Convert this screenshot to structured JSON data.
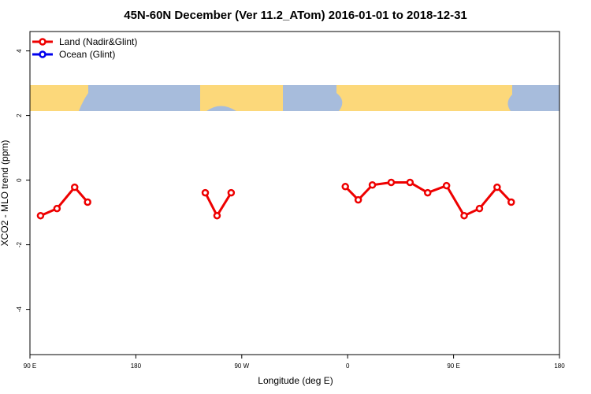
{
  "chart_data": {
    "type": "line",
    "title": "45N-60N December (Ver 11.2_ATom)   2016-01-01 to 2018-12-31",
    "x_label": "Longitude (deg E)",
    "y_label": "XCO2 - MLO trend (ppm)",
    "x": [
      99,
      113,
      128,
      139,
      null,
      239,
      249,
      261,
      null,
      358,
      369,
      381,
      397,
      413,
      428,
      444,
      459,
      472,
      487,
      499
    ],
    "series": [
      {
        "name": "Land (Nadir&Glint)",
        "color": "#ee0000",
        "values": [
          -1.1,
          -0.88,
          -0.22,
          -0.68,
          null,
          -0.39,
          -1.1,
          -0.39,
          null,
          -0.2,
          -0.61,
          -0.15,
          -0.07,
          -0.07,
          -0.39,
          -0.17,
          -1.1,
          -0.88,
          -0.22,
          -0.68
        ]
      },
      {
        "name": "Ocean (Glint)",
        "color": "#0000ee",
        "values": [
          null,
          null,
          null,
          null,
          null,
          null,
          null,
          null,
          null,
          null,
          null,
          null,
          null,
          null,
          null,
          null,
          null,
          null,
          null,
          null
        ]
      }
    ],
    "xlim": [
      90,
      540
    ],
    "xticks": [
      {
        "value": 90,
        "label": "90 E"
      },
      {
        "value": 180,
        "label": "180"
      },
      {
        "value": 270,
        "label": "90 W"
      },
      {
        "value": 360,
        "label": "0"
      },
      {
        "value": 450,
        "label": "90 E"
      },
      {
        "value": 540,
        "label": "180"
      }
    ],
    "ylim": [
      -5.4,
      4.6
    ],
    "yticks": [
      -4,
      -2,
      0,
      2,
      4
    ],
    "legend": "top-left"
  }
}
